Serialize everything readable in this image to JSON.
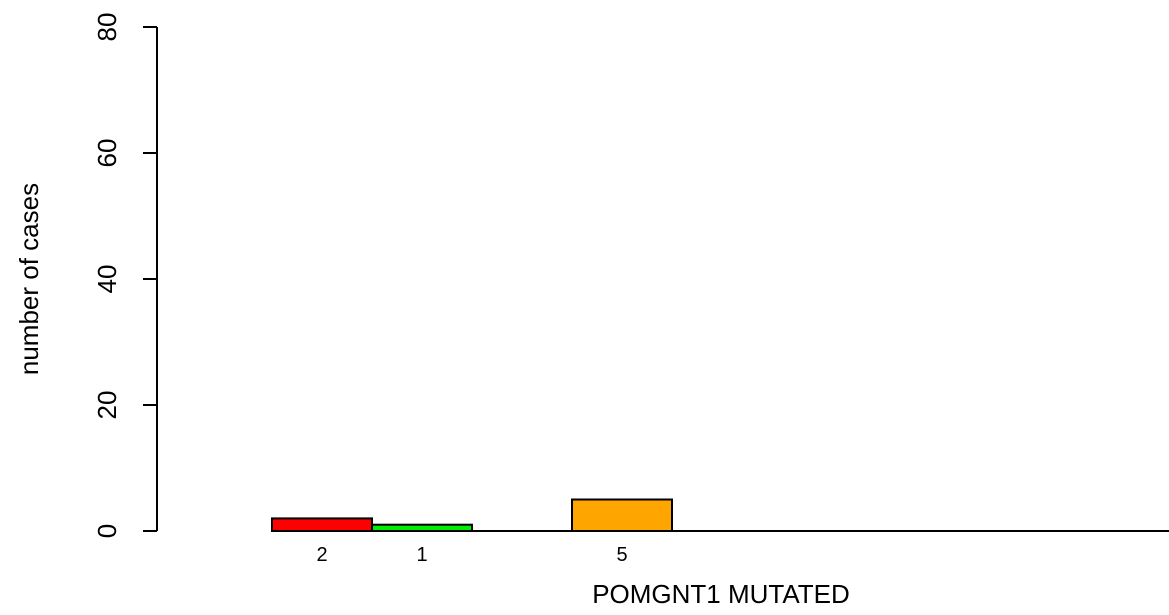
{
  "chart_data": {
    "type": "bar",
    "title": "",
    "xlabel": "POMGNT1 MUTATED",
    "ylabel": "number of cases",
    "ylim": [
      0,
      80
    ],
    "yticks": [
      0,
      20,
      40,
      60,
      80
    ],
    "grid": false,
    "bars": [
      {
        "value": 2,
        "label": "2",
        "color": "#ff0000"
      },
      {
        "value": 1,
        "label": "1",
        "color": "#00ee00"
      },
      {
        "value": 0,
        "label": "",
        "color": "#ffffff"
      },
      {
        "value": 5,
        "label": "5",
        "color": "#ffa500"
      },
      {
        "value": 0,
        "label": "",
        "color": "#ffffff"
      },
      {
        "value": 0,
        "label": "",
        "color": "#ffffff"
      },
      {
        "value": 0,
        "label": "",
        "color": "#ffffff"
      },
      {
        "value": 0,
        "label": "",
        "color": "#ffffff"
      }
    ]
  }
}
